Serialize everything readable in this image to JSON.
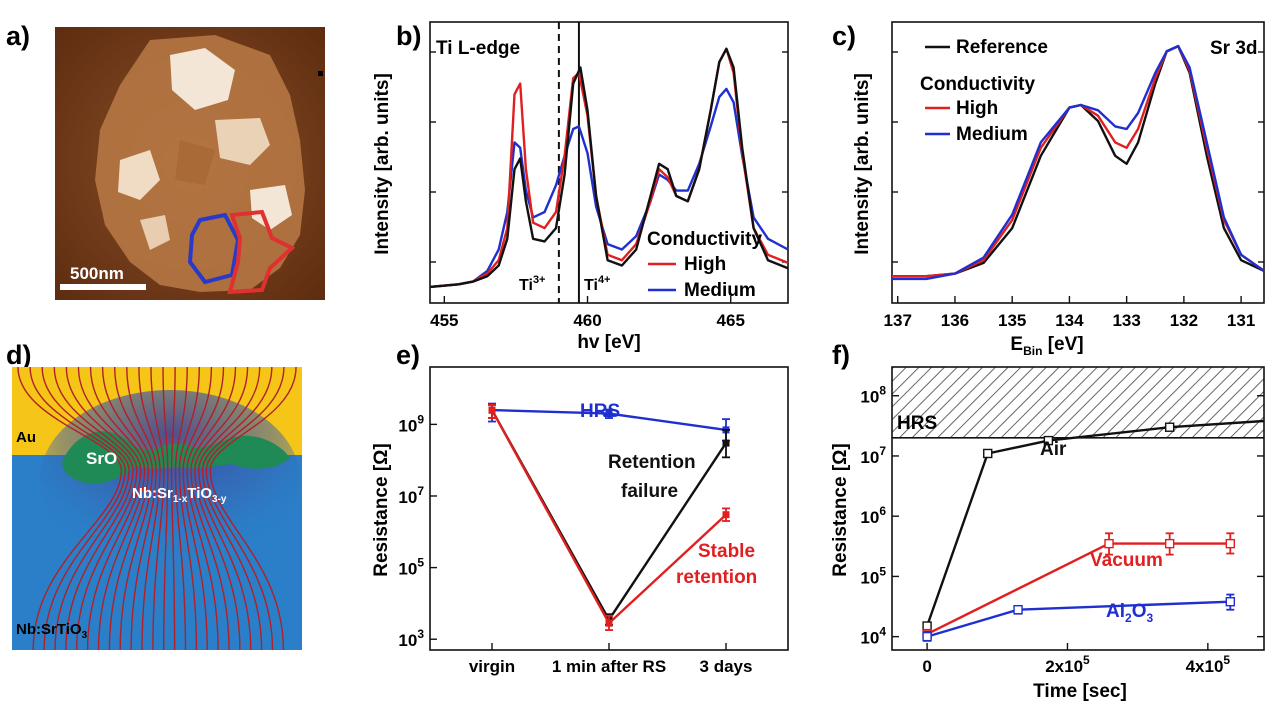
{
  "panel_labels": [
    "a)",
    "b)",
    "c)",
    "d)",
    "e)",
    "f)"
  ],
  "colors": {
    "black": "#111111",
    "red": "#e02020",
    "blue": "#1f2fd0",
    "afm_bg": "#6b3312",
    "au": "#f5c518",
    "srtio": "#2a7fc8",
    "sro": "#1f8a55",
    "field_line": "#b0202a"
  },
  "panel_a": {
    "scale_bar_label": "500nm"
  },
  "panel_d": {
    "labels": {
      "au": "Au",
      "sro": "SrO",
      "filament_main": "Nb:Sr",
      "filament_sub1": "1-x",
      "filament_mid": "TiO",
      "filament_sub2": "3-y",
      "substrate_main": "Nb:SrTiO",
      "substrate_sub": "3"
    }
  },
  "chart_data": [
    {
      "panel": "b",
      "type": "line",
      "annotation": "Ti L-edge",
      "xlabel": "hv [eV]",
      "ylabel": "Intensity [arb. units]",
      "xlim": [
        454.5,
        467.0
      ],
      "ylim": [
        0,
        1.05
      ],
      "xticks": [
        455,
        460,
        465
      ],
      "legend": {
        "title": "Conductivity",
        "position": "bottom-right"
      },
      "vlines": [
        {
          "x": 459.0,
          "style": "dashed",
          "label": "Ti",
          "sup": "3+"
        },
        {
          "x": 459.7,
          "style": "solid",
          "label": "Ti",
          "sup": "4+"
        }
      ],
      "series": [
        {
          "color": "#111111",
          "x": [
            454.5,
            455.5,
            456.0,
            456.5,
            456.9,
            457.2,
            457.45,
            457.65,
            457.85,
            458.1,
            458.5,
            458.9,
            459.2,
            459.5,
            459.75,
            460.0,
            460.3,
            460.7,
            461.2,
            461.7,
            462.2,
            462.5,
            462.8,
            463.1,
            463.5,
            463.9,
            464.3,
            464.6,
            464.85,
            465.1,
            465.4,
            465.8,
            466.3,
            467.0
          ],
          "y": [
            0.06,
            0.07,
            0.08,
            0.1,
            0.14,
            0.24,
            0.5,
            0.54,
            0.38,
            0.24,
            0.23,
            0.28,
            0.48,
            0.82,
            0.88,
            0.72,
            0.4,
            0.16,
            0.14,
            0.2,
            0.4,
            0.52,
            0.5,
            0.4,
            0.38,
            0.5,
            0.72,
            0.9,
            0.95,
            0.88,
            0.58,
            0.28,
            0.16,
            0.13
          ]
        },
        {
          "name": "High",
          "color": "#e02020",
          "x": [
            454.5,
            455.5,
            456.0,
            456.5,
            456.9,
            457.2,
            457.45,
            457.65,
            457.85,
            458.1,
            458.5,
            458.9,
            459.2,
            459.5,
            459.7,
            460.0,
            460.3,
            460.7,
            461.2,
            461.7,
            462.2,
            462.5,
            462.8,
            463.1,
            463.5,
            463.9,
            464.3,
            464.6,
            464.85,
            465.1,
            465.4,
            465.8,
            466.3,
            467.0
          ],
          "y": [
            0.06,
            0.07,
            0.08,
            0.11,
            0.16,
            0.28,
            0.78,
            0.82,
            0.5,
            0.3,
            0.28,
            0.34,
            0.55,
            0.84,
            0.86,
            0.7,
            0.4,
            0.18,
            0.16,
            0.22,
            0.38,
            0.5,
            0.47,
            0.4,
            0.38,
            0.5,
            0.72,
            0.9,
            0.95,
            0.86,
            0.56,
            0.28,
            0.18,
            0.15
          ]
        },
        {
          "name": "Medium",
          "color": "#1f2fd0",
          "x": [
            454.5,
            455.5,
            456.0,
            456.5,
            456.9,
            457.2,
            457.45,
            457.65,
            457.85,
            458.1,
            458.5,
            458.9,
            459.2,
            459.5,
            459.7,
            460.0,
            460.3,
            460.7,
            461.2,
            461.7,
            462.2,
            462.5,
            462.8,
            463.1,
            463.5,
            463.9,
            464.3,
            464.6,
            464.85,
            465.1,
            465.4,
            465.8,
            466.3,
            467.0
          ],
          "y": [
            0.06,
            0.07,
            0.08,
            0.12,
            0.2,
            0.34,
            0.6,
            0.58,
            0.42,
            0.32,
            0.34,
            0.44,
            0.55,
            0.65,
            0.66,
            0.56,
            0.36,
            0.22,
            0.2,
            0.25,
            0.38,
            0.48,
            0.46,
            0.42,
            0.42,
            0.52,
            0.66,
            0.77,
            0.8,
            0.75,
            0.55,
            0.32,
            0.24,
            0.2
          ]
        }
      ]
    },
    {
      "panel": "c",
      "type": "line",
      "annotation": "Sr 3d",
      "xlabel_main": "E",
      "xlabel_sub": "Bin",
      "xlabel_unit": " [eV]",
      "ylabel": "Intensity [arb. units]",
      "xlim": [
        137.1,
        130.6
      ],
      "ylim": [
        0,
        1.05
      ],
      "xticks": [
        137,
        136,
        135,
        134,
        133,
        132,
        131
      ],
      "x_reversed": true,
      "legend": {
        "title": "Conductivity",
        "position": "top-left"
      },
      "series": [
        {
          "name": "Reference",
          "color": "#111111",
          "x": [
            137.1,
            136.5,
            136.0,
            135.5,
            135.0,
            134.5,
            134.0,
            133.8,
            133.5,
            133.2,
            133.0,
            132.8,
            132.5,
            132.3,
            132.1,
            131.9,
            131.6,
            131.3,
            131.0,
            130.6
          ],
          "y": [
            0.1,
            0.1,
            0.11,
            0.15,
            0.28,
            0.55,
            0.73,
            0.74,
            0.68,
            0.55,
            0.52,
            0.6,
            0.82,
            0.94,
            0.96,
            0.86,
            0.55,
            0.28,
            0.16,
            0.12
          ]
        },
        {
          "name": "High",
          "color": "#e02020",
          "x": [
            137.1,
            136.5,
            136.0,
            135.5,
            135.0,
            134.5,
            134.0,
            133.8,
            133.5,
            133.2,
            133.0,
            132.8,
            132.5,
            132.3,
            132.1,
            131.9,
            131.6,
            131.3,
            131.0,
            130.6
          ],
          "y": [
            0.1,
            0.1,
            0.11,
            0.16,
            0.31,
            0.58,
            0.73,
            0.74,
            0.7,
            0.6,
            0.58,
            0.65,
            0.84,
            0.94,
            0.96,
            0.87,
            0.58,
            0.31,
            0.18,
            0.12
          ]
        },
        {
          "name": "Medium",
          "color": "#1f2fd0",
          "x": [
            137.1,
            136.5,
            136.0,
            135.5,
            135.0,
            134.5,
            134.0,
            133.8,
            133.5,
            133.2,
            133.0,
            132.8,
            132.5,
            132.3,
            132.1,
            131.9,
            131.6,
            131.3,
            131.0,
            130.6
          ],
          "y": [
            0.09,
            0.09,
            0.11,
            0.17,
            0.33,
            0.6,
            0.73,
            0.74,
            0.72,
            0.66,
            0.65,
            0.71,
            0.86,
            0.94,
            0.96,
            0.88,
            0.6,
            0.32,
            0.18,
            0.12
          ]
        }
      ]
    },
    {
      "panel": "e",
      "type": "line",
      "ylabel": "Resistance [Ω]",
      "y_scale": "log",
      "ylim": [
        500,
        40000000000
      ],
      "yticks": [
        {
          "base": "10",
          "exp": "9",
          "value": 1000000000
        },
        {
          "base": "10",
          "exp": "7",
          "value": 10000000
        },
        {
          "base": "10",
          "exp": "5",
          "value": 100000
        },
        {
          "base": "10",
          "exp": "3",
          "value": 1000
        }
      ],
      "categories": [
        "virgin",
        "1 min after RS",
        "3 days"
      ],
      "series": [
        {
          "name": "HRS",
          "color": "#1f2fd0",
          "values": [
            2500000000,
            2000000000,
            700000000
          ],
          "err_low": [
            1200000000,
            1500000000,
            350000000
          ],
          "err_high": [
            3800000000,
            2600000000,
            1400000000
          ]
        },
        {
          "name": "Retention failure",
          "color": "#111111",
          "values": [
            2500000000,
            3500,
            300000000
          ],
          "err_low": [
            1500000000,
            2500,
            120000000
          ],
          "err_high": [
            3500000000,
            5000,
            700000000
          ]
        },
        {
          "name": "Stable retention",
          "color": "#e02020",
          "values": [
            2500000000,
            2800,
            3000000
          ],
          "err_low": [
            1500000000,
            1800,
            2000000
          ],
          "err_high": [
            3500000000,
            4500,
            4500000
          ]
        }
      ],
      "labels": [
        {
          "text": "HRS",
          "color": "#1f2fd0"
        },
        {
          "text": "Retention",
          "color": "#111111"
        },
        {
          "text": "failure",
          "color": "#111111"
        },
        {
          "text": "Stable",
          "color": "#e02020"
        },
        {
          "text": "retention",
          "color": "#e02020"
        }
      ]
    },
    {
      "panel": "f",
      "type": "line",
      "xlabel": "Time [sec]",
      "ylabel": "Resistance [Ω]",
      "y_scale": "log",
      "xlim": [
        -50000,
        480000
      ],
      "ylim": [
        6000,
        300000000
      ],
      "xticks": [
        {
          "value": 0,
          "label": "0"
        },
        {
          "value": 200000,
          "base": "2x10",
          "exp": "5"
        },
        {
          "value": 400000,
          "base": "4x10",
          "exp": "5"
        }
      ],
      "yticks": [
        {
          "base": "10",
          "exp": "8",
          "value": 100000000
        },
        {
          "base": "10",
          "exp": "7",
          "value": 10000000
        },
        {
          "base": "10",
          "exp": "6",
          "value": 1000000
        },
        {
          "base": "10",
          "exp": "5",
          "value": 100000
        },
        {
          "base": "10",
          "exp": "4",
          "value": 10000
        }
      ],
      "hrs_region": {
        "label": "HRS",
        "from": 20000000
      },
      "series": [
        {
          "name": "Air",
          "color": "#111111",
          "x": [
            0,
            86400,
            172800,
            345600,
            480000
          ],
          "values": [
            15000,
            11000000,
            18000000,
            30000000,
            38000000
          ]
        },
        {
          "name": "Vacuum",
          "color": "#e02020",
          "x": [
            0,
            259200,
            345600,
            432000
          ],
          "values": [
            11000,
            350000,
            350000,
            350000
          ],
          "err_low": [
            9000,
            230000,
            230000,
            240000
          ],
          "err_high": [
            13000,
            520000,
            520000,
            520000
          ]
        },
        {
          "name": "Al2O3",
          "color": "#1f2fd0",
          "x": [
            0,
            129600,
            432000
          ],
          "values": [
            10000,
            28000,
            38000
          ],
          "err_low": [
            8500,
            24000,
            28000
          ],
          "err_high": [
            12000,
            32000,
            50000
          ]
        }
      ],
      "labels": [
        {
          "text": "Air",
          "color": "#111111"
        },
        {
          "text": "Vacuum",
          "color": "#e02020"
        },
        {
          "text": "Al",
          "sub": "2",
          "text2": "O",
          "sub2": "3",
          "color": "#1f2fd0"
        }
      ]
    }
  ]
}
